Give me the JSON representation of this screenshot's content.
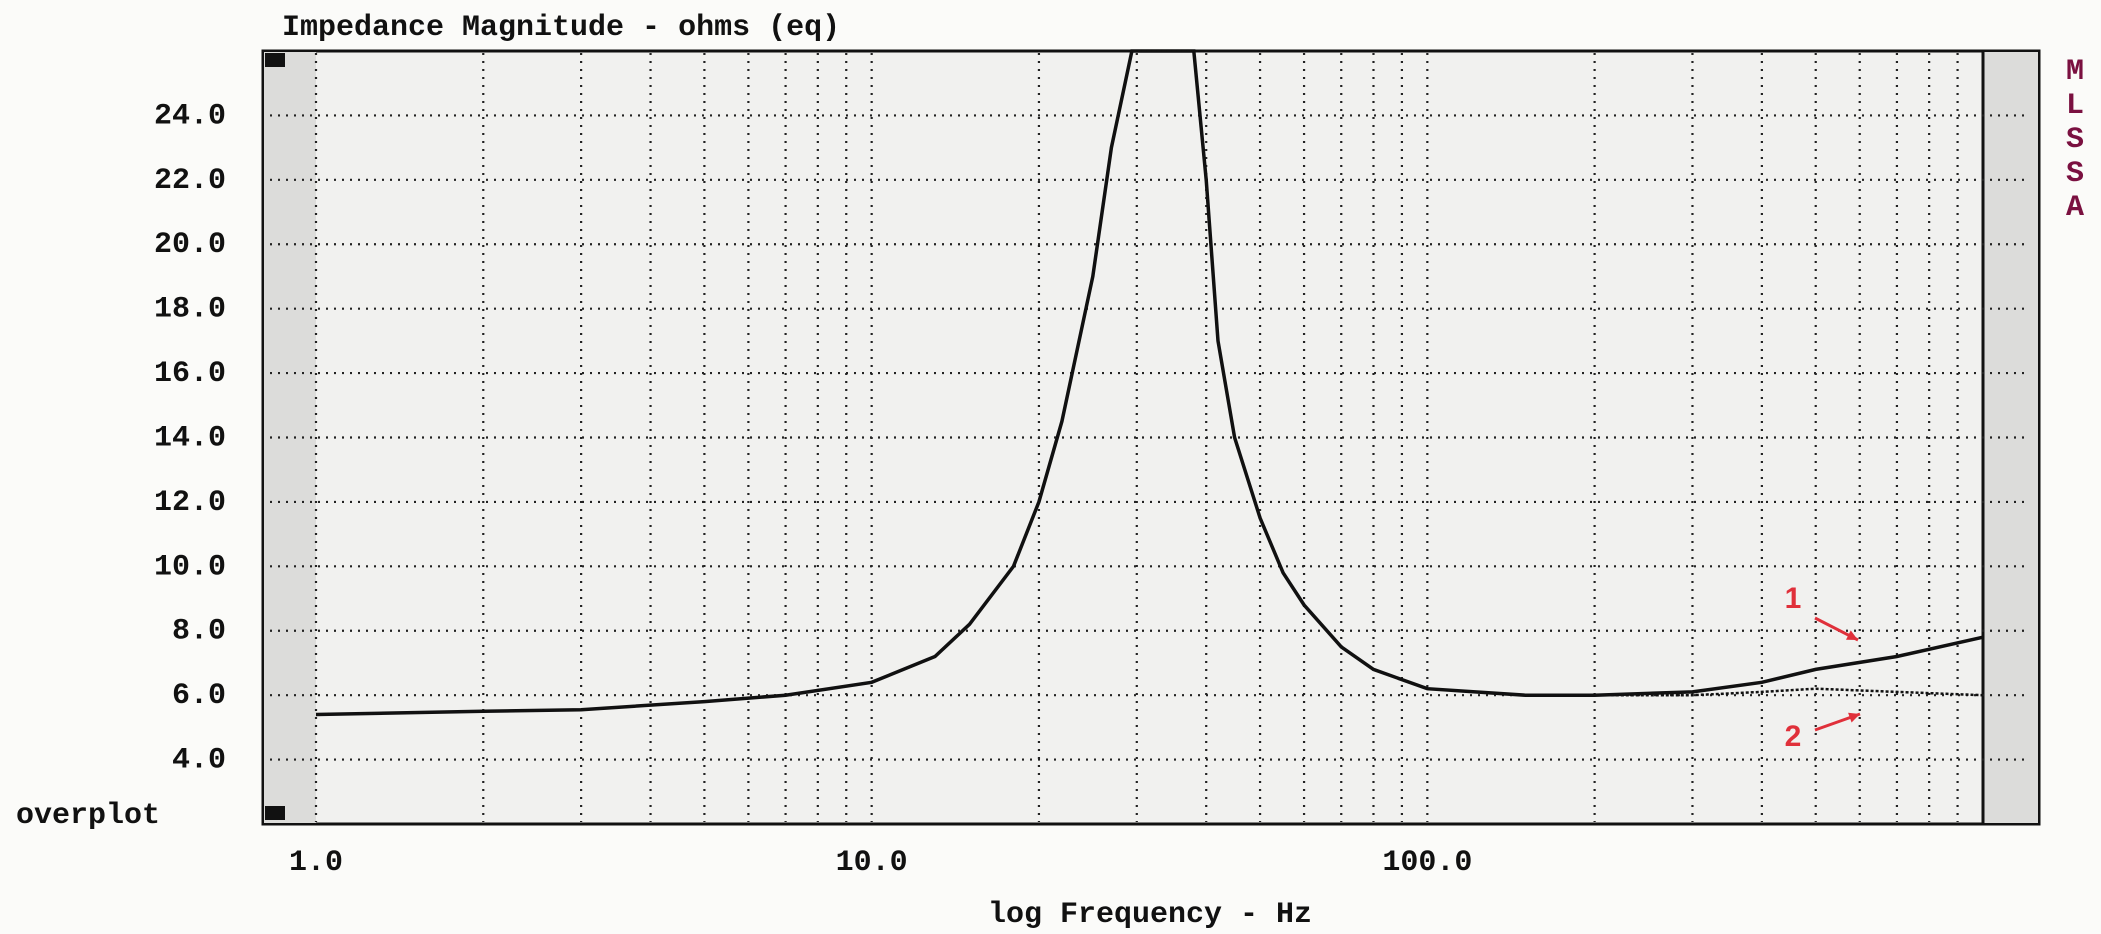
{
  "chart_data": {
    "type": "line",
    "title": "Impedance Magnitude - ohms (eq)",
    "x_label": "log Frequency - Hz",
    "overplot_label": "overplot",
    "side_label": "MLSSA",
    "x_scale": "log",
    "grid": true,
    "x": [
      1,
      2,
      3,
      5,
      7,
      10,
      13,
      15,
      18,
      20,
      22,
      25,
      27,
      29.4,
      38,
      40,
      42,
      45,
      50,
      55,
      60,
      70,
      80,
      100,
      150,
      200,
      300,
      400,
      500,
      700,
      1000
    ],
    "series": [
      {
        "name": "1",
        "color": "#111111",
        "values": [
          5.4,
          5.5,
          5.55,
          5.8,
          6.0,
          6.4,
          7.2,
          8.2,
          10,
          12,
          14.5,
          19,
          23,
          26,
          26,
          22,
          17,
          14,
          11.5,
          9.8,
          8.8,
          7.5,
          6.8,
          6.2,
          6.0,
          6.0,
          6.1,
          6.4,
          6.8,
          7.2,
          7.8
        ]
      },
      {
        "name": "2",
        "color": "#111111",
        "values": [
          5.4,
          5.5,
          5.55,
          5.8,
          6.0,
          6.4,
          7.2,
          8.2,
          10,
          12,
          14.5,
          19,
          23,
          26,
          26,
          22,
          17,
          14,
          11.5,
          9.8,
          8.8,
          7.5,
          6.8,
          6.2,
          6.0,
          6.0,
          6.0,
          6.1,
          6.2,
          6.1,
          6.0
        ]
      }
    ],
    "annotation_color": "#e0303a",
    "xlim": [
      1,
      1000
    ],
    "ylim": [
      2,
      26
    ],
    "xticks": [
      {
        "value": 1,
        "label": "1.0"
      },
      {
        "value": 10,
        "label": "10.0"
      },
      {
        "value": 100,
        "label": "100.0"
      }
    ],
    "minor_xticks": [
      2,
      3,
      4,
      5,
      6,
      7,
      8,
      9,
      20,
      30,
      40,
      50,
      60,
      70,
      80,
      90,
      200,
      300,
      400,
      500,
      600,
      700,
      800,
      900
    ],
    "yticks": [
      {
        "value": 4,
        "label": "4.0"
      },
      {
        "value": 6,
        "label": "6.0"
      },
      {
        "value": 8,
        "label": "8.0"
      },
      {
        "value": 10,
        "label": "10.0"
      },
      {
        "value": 12,
        "label": "12.0"
      },
      {
        "value": 14,
        "label": "14.0"
      },
      {
        "value": 16,
        "label": "16.0"
      },
      {
        "value": 18,
        "label": "18.0"
      },
      {
        "value": 20,
        "label": "20.0"
      },
      {
        "value": 22,
        "label": "22.0"
      },
      {
        "value": 24,
        "label": "24.0"
      }
    ]
  }
}
